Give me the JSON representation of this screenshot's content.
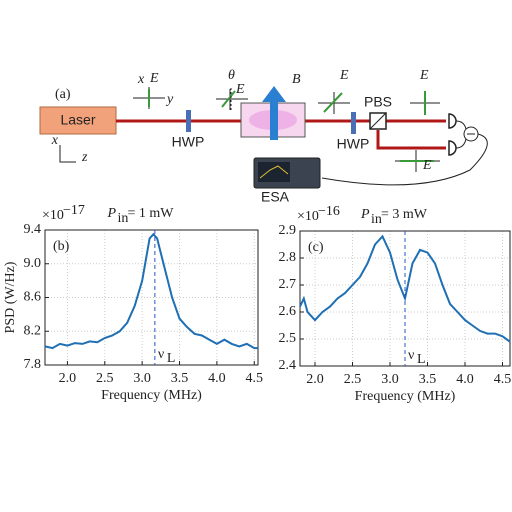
{
  "diagram": {
    "panel": "(a)",
    "laser": "Laser",
    "hwp1": "HWP",
    "hwp2": "HWP",
    "pbs": "PBS",
    "esa": "ESA",
    "axis_x": "x",
    "axis_z": "z",
    "pol_x": "x",
    "pol_y": "y",
    "e_field": "E",
    "theta": "θ",
    "b_field": "B"
  },
  "chart_data": [
    {
      "type": "line",
      "panel": "(b)",
      "title": "P",
      "title_sub": "in",
      "title_rest": " = 1 mW",
      "y_multiplier": "×10",
      "y_multiplier_exp": "−17",
      "ylabel": "PSD (W/Hz)",
      "xlabel": "Frequency (MHz)",
      "vline": 3.17,
      "vline_label": "ν",
      "vline_label_sub": "L",
      "grid": true,
      "xlim": [
        1.7,
        4.55
      ],
      "ylim": [
        7.8,
        9.4
      ],
      "xticks": [
        {
          "value": 2,
          "label": "2.0"
        },
        2.5,
        {
          "value": 3,
          "label": "3.0"
        },
        3.5,
        {
          "value": 4,
          "label": "4.0"
        },
        4.5
      ],
      "yticks": [
        7.8,
        8.2,
        8.6,
        {
          "value": 9,
          "label": "9.0"
        },
        9.4
      ],
      "x": [
        1.7,
        1.8,
        1.9,
        2.0,
        2.1,
        2.2,
        2.3,
        2.4,
        2.5,
        2.6,
        2.7,
        2.8,
        2.9,
        3.0,
        3.1,
        3.15,
        3.2,
        3.3,
        3.4,
        3.5,
        3.6,
        3.7,
        3.8,
        3.9,
        4.0,
        4.1,
        4.2,
        4.3,
        4.4,
        4.5,
        4.55
      ],
      "series": [
        {
          "color": "#1f6fb4",
          "values": [
            8.02,
            8.0,
            8.05,
            8.03,
            8.06,
            8.05,
            8.08,
            8.07,
            8.12,
            8.15,
            8.2,
            8.3,
            8.5,
            8.8,
            9.3,
            9.35,
            9.3,
            8.95,
            8.6,
            8.35,
            8.25,
            8.17,
            8.15,
            8.1,
            8.05,
            8.1,
            8.05,
            8.02,
            8.05,
            8.0,
            8.0
          ]
        }
      ]
    },
    {
      "type": "line",
      "panel": "(c)",
      "title": "P",
      "title_sub": "in",
      "title_rest": " = 3 mW",
      "y_multiplier": "×10",
      "y_multiplier_exp": "−16",
      "xlabel": "Frequency (MHz)",
      "vline": 3.2,
      "vline_label": "ν",
      "vline_label_sub": "L",
      "grid": true,
      "xlim": [
        1.8,
        4.6
      ],
      "ylim": [
        2.4,
        2.9
      ],
      "xticks": [
        {
          "value": 2,
          "label": "2.0"
        },
        2.5,
        {
          "value": 3,
          "label": "3.0"
        },
        3.5,
        {
          "value": 4,
          "label": "4.0"
        },
        4.5
      ],
      "yticks": [
        2.4,
        2.5,
        2.6,
        2.7,
        2.8,
        2.9
      ],
      "x": [
        1.8,
        1.85,
        1.9,
        2.0,
        2.1,
        2.2,
        2.3,
        2.4,
        2.5,
        2.6,
        2.7,
        2.8,
        2.9,
        3.0,
        3.1,
        3.2,
        3.3,
        3.4,
        3.5,
        3.6,
        3.7,
        3.8,
        3.9,
        4.0,
        4.1,
        4.2,
        4.3,
        4.4,
        4.5,
        4.6
      ],
      "series": [
        {
          "color": "#1f6fb4",
          "values": [
            2.62,
            2.65,
            2.6,
            2.57,
            2.6,
            2.62,
            2.65,
            2.67,
            2.7,
            2.73,
            2.78,
            2.85,
            2.88,
            2.82,
            2.72,
            2.65,
            2.78,
            2.83,
            2.82,
            2.78,
            2.7,
            2.63,
            2.6,
            2.57,
            2.55,
            2.53,
            2.52,
            2.52,
            2.51,
            2.49
          ]
        }
      ]
    }
  ]
}
